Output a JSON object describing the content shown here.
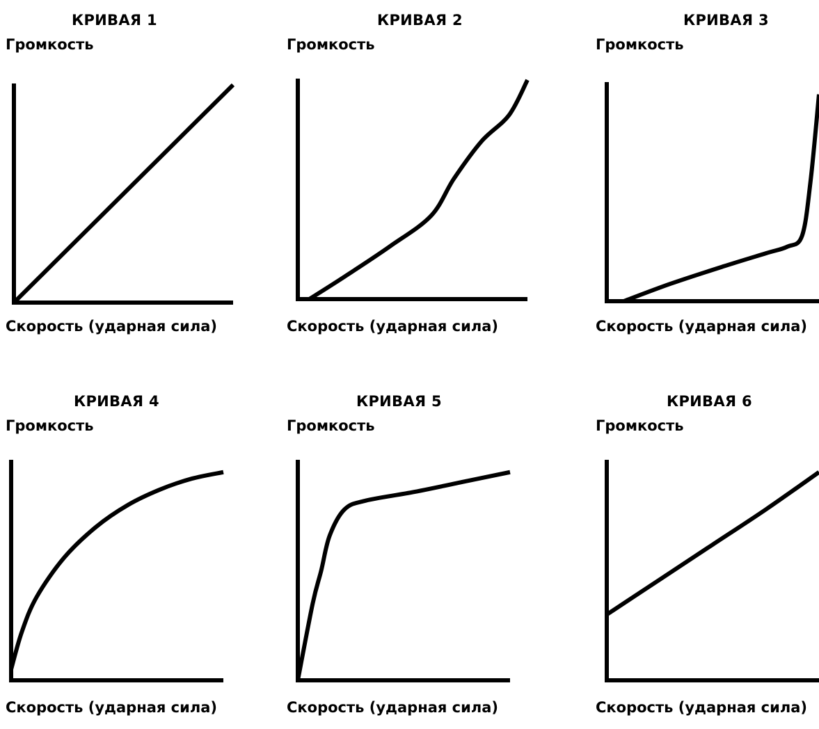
{
  "chart_data": [
    {
      "type": "line",
      "title": "КРИВАЯ 1",
      "ylabel": "Громкость",
      "xlabel": "Скорость (ударная сила)",
      "xlim": [
        0,
        1
      ],
      "ylim": [
        0,
        1
      ],
      "grid": false,
      "series": [
        {
          "x": [
            0,
            0.25,
            0.5,
            0.75,
            1.0
          ],
          "y": [
            0,
            0.25,
            0.5,
            0.75,
            1.0
          ]
        }
      ]
    },
    {
      "type": "line",
      "title": "КРИВАЯ 2",
      "ylabel": "Громкость",
      "xlabel": "Скорость (ударная сила)",
      "xlim": [
        0,
        1
      ],
      "ylim": [
        0,
        1
      ],
      "grid": false,
      "series": [
        {
          "x": [
            0.05,
            0.2,
            0.4,
            0.58,
            0.68,
            0.8,
            0.92,
            1.0
          ],
          "y": [
            0,
            0.1,
            0.24,
            0.38,
            0.55,
            0.72,
            0.84,
            1.0
          ]
        }
      ]
    },
    {
      "type": "line",
      "title": "КРИВАЯ 3",
      "ylabel": "Громкость",
      "xlabel": "Скорость (ударная сила)",
      "xlim": [
        0,
        1
      ],
      "ylim": [
        0,
        1
      ],
      "grid": false,
      "series": [
        {
          "x": [
            0.08,
            0.3,
            0.55,
            0.75,
            0.85,
            0.92,
            0.96,
            1.0
          ],
          "y": [
            0,
            0.08,
            0.16,
            0.22,
            0.25,
            0.3,
            0.55,
            0.95
          ]
        }
      ]
    },
    {
      "type": "line",
      "title": "КРИВАЯ 4",
      "ylabel": "Громкость",
      "xlabel": "Скорость (ударная сила)",
      "xlim": [
        0,
        1
      ],
      "ylim": [
        0,
        1
      ],
      "grid": false,
      "series": [
        {
          "x": [
            0,
            0.05,
            0.12,
            0.25,
            0.4,
            0.55,
            0.7,
            0.85,
            1.0
          ],
          "y": [
            0.05,
            0.22,
            0.38,
            0.56,
            0.7,
            0.8,
            0.87,
            0.92,
            0.95
          ]
        }
      ]
    },
    {
      "type": "line",
      "title": "КРИВАЯ 5",
      "ylabel": "Громкость",
      "xlabel": "Скорость (ударная сила)",
      "xlim": [
        0,
        1
      ],
      "ylim": [
        0,
        1
      ],
      "grid": false,
      "series": [
        {
          "x": [
            0,
            0.07,
            0.11,
            0.15,
            0.22,
            0.32,
            0.55,
            0.8,
            1.0
          ],
          "y": [
            0,
            0.35,
            0.5,
            0.66,
            0.78,
            0.82,
            0.86,
            0.91,
            0.95
          ]
        }
      ]
    },
    {
      "type": "line",
      "title": "КРИВАЯ 6",
      "ylabel": "Громкость",
      "xlabel": "Скорость (ударная сила)",
      "xlim": [
        0,
        1
      ],
      "ylim": [
        0,
        1
      ],
      "grid": false,
      "series": [
        {
          "x": [
            0,
            0.25,
            0.5,
            0.75,
            1.0
          ],
          "y": [
            0.3,
            0.46,
            0.62,
            0.78,
            0.95
          ]
        }
      ]
    }
  ],
  "style": {
    "line_color": "#000000",
    "axis_color": "#000000",
    "background": "#ffffff"
  }
}
